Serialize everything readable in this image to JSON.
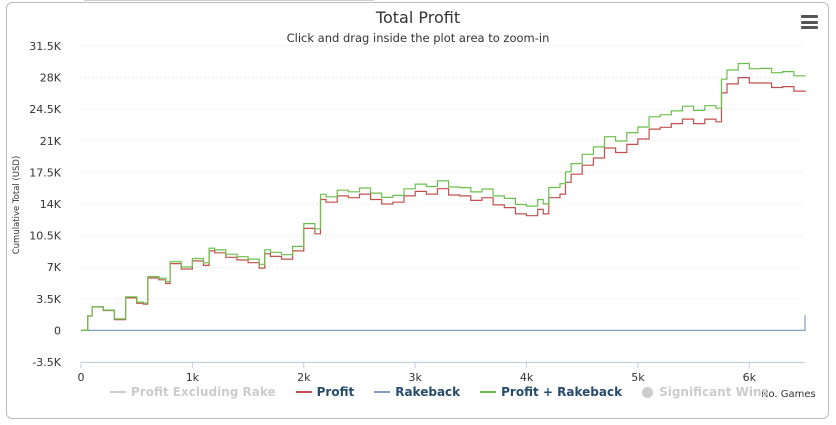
{
  "chart": {
    "title": "Total Profit",
    "subtitle": "Click and drag inside the plot area to zoom-in",
    "menu_icon": "hamburger-menu-icon"
  },
  "legend": [
    {
      "label": "Profit Excluding Rake",
      "color": "#cccccc",
      "marker": "line",
      "hidden": true
    },
    {
      "label": "Profit",
      "color": "#c0504d",
      "marker": "line",
      "hidden": false
    },
    {
      "label": "Rakeback",
      "color": "#7f9ec0",
      "marker": "line",
      "hidden": false
    },
    {
      "label": "Profit + Rakeback",
      "color": "#6dbf4b",
      "marker": "line",
      "hidden": false
    },
    {
      "label": "Significant Wins",
      "color": "#cccccc",
      "marker": "dot",
      "hidden": true
    }
  ],
  "chart_data": {
    "type": "line",
    "title": "Total Profit",
    "subtitle": "Click and drag inside the plot area to zoom-in",
    "xlabel": "No. Games",
    "ylabel": "Cumulative Total (USD)",
    "xlim": [
      0,
      6500
    ],
    "ylim": [
      -3500,
      31500
    ],
    "x_ticks": [
      0,
      1000,
      2000,
      3000,
      4000,
      5000,
      6000
    ],
    "x_tick_labels": [
      "0",
      "1k",
      "2k",
      "3k",
      "4k",
      "5k",
      "6k"
    ],
    "y_ticks": [
      -3500,
      0,
      3500,
      7000,
      10500,
      14000,
      17500,
      21000,
      24500,
      28000,
      31500
    ],
    "y_tick_labels": [
      "-3.5K",
      "0",
      "3.5K",
      "7K",
      "10.5K",
      "14K",
      "17.5K",
      "21K",
      "24.5K",
      "28K",
      "31.5K"
    ],
    "grid": "horizontal-dotted",
    "legend_position": "bottom",
    "series": [
      {
        "name": "Profit",
        "color": "#c0504d",
        "x": [
          0,
          60,
          100,
          200,
          300,
          400,
          500,
          560,
          600,
          700,
          760,
          800,
          900,
          1000,
          1100,
          1150,
          1200,
          1300,
          1400,
          1500,
          1600,
          1650,
          1700,
          1800,
          1900,
          2000,
          2100,
          2150,
          2200,
          2300,
          2400,
          2500,
          2600,
          2700,
          2800,
          2900,
          3000,
          3100,
          3200,
          3300,
          3400,
          3500,
          3600,
          3700,
          3800,
          3900,
          4000,
          4100,
          4150,
          4200,
          4300,
          4350,
          4400,
          4500,
          4600,
          4700,
          4800,
          4900,
          5000,
          5100,
          5200,
          5300,
          5400,
          5500,
          5600,
          5700,
          5750,
          5800,
          5900,
          6000,
          6100,
          6200,
          6300,
          6400,
          6500
        ],
        "y": [
          0,
          1600,
          2600,
          2200,
          1200,
          3600,
          3000,
          2900,
          5800,
          5600,
          5200,
          7400,
          6800,
          7700,
          7200,
          8800,
          8600,
          8100,
          7800,
          7500,
          6900,
          8500,
          8200,
          7900,
          8800,
          11300,
          10700,
          14500,
          14200,
          14900,
          14700,
          15100,
          14500,
          14000,
          14200,
          14900,
          15400,
          15100,
          15700,
          15000,
          14900,
          14400,
          14700,
          13900,
          13600,
          12900,
          12700,
          13400,
          12900,
          14700,
          15100,
          16400,
          17300,
          18300,
          19100,
          20200,
          19700,
          20600,
          21200,
          22300,
          22500,
          22900,
          23400,
          22900,
          23400,
          23100,
          26300,
          27300,
          28000,
          27400,
          27400,
          26900,
          27000,
          26500,
          26400
        ]
      },
      {
        "name": "Rakeback",
        "color": "#7f9ec0",
        "x": [
          0,
          6500
        ],
        "y": [
          0,
          1700
        ]
      },
      {
        "name": "Profit + Rakeback",
        "color": "#6dbf4b",
        "x": [
          0,
          60,
          100,
          200,
          300,
          400,
          500,
          560,
          600,
          700,
          760,
          800,
          900,
          1000,
          1100,
          1150,
          1200,
          1300,
          1400,
          1500,
          1600,
          1650,
          1700,
          1800,
          1900,
          2000,
          2100,
          2150,
          2200,
          2300,
          2400,
          2500,
          2600,
          2700,
          2800,
          2900,
          3000,
          3100,
          3200,
          3300,
          3400,
          3500,
          3600,
          3700,
          3800,
          3900,
          4000,
          4100,
          4150,
          4200,
          4300,
          4350,
          4400,
          4500,
          4600,
          4700,
          4800,
          4900,
          5000,
          5100,
          5200,
          5300,
          5400,
          5500,
          5600,
          5700,
          5750,
          5800,
          5900,
          6000,
          6100,
          6200,
          6300,
          6400,
          6500
        ],
        "y": [
          0,
          1615,
          2626,
          2252,
          1278,
          3705,
          3131,
          3052,
          5957,
          5783,
          5399,
          7609,
          7035,
          7962,
          7488,
          9102,
          8914,
          8440,
          8166,
          7892,
          7318,
          8931,
          8653,
          8379,
          9305,
          11831,
          11257,
          15072,
          14798,
          15524,
          15350,
          15777,
          15203,
          14729,
          14955,
          15680,
          16209,
          15935,
          16561,
          15887,
          15813,
          15340,
          15666,
          14892,
          14618,
          13944,
          13770,
          14496,
          14009,
          15823,
          16249,
          17562,
          18475,
          19501,
          20327,
          21453,
          20979,
          21905,
          22532,
          23658,
          23884,
          24310,
          24836,
          24362,
          24888,
          24614,
          27827,
          28838,
          29564,
          28990,
          29016,
          28542,
          28668,
          28194,
          28120
        ]
      }
    ]
  }
}
